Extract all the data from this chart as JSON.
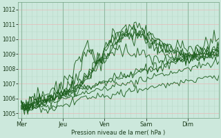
{
  "bg_color": "#cce8dc",
  "line_color": "#1a5c1a",
  "ylabel": "Pression niveau de la mer( hPa )",
  "ylim": [
    1004.7,
    1012.5
  ],
  "yticks": [
    1005,
    1006,
    1007,
    1008,
    1009,
    1010,
    1011,
    1012
  ],
  "xlabels": [
    "Mer",
    "Jeu",
    "Ven",
    "Sam",
    "Dim"
  ],
  "xtick_positions": [
    0,
    24,
    48,
    72,
    96
  ],
  "xlim": [
    -2,
    114
  ],
  "total_points": 120,
  "total_hours": 114,
  "grid_major_h_color": "#e8b8b8",
  "grid_minor_h_color": "#b8d8c8",
  "grid_minor_v_color": "#b8d8c8"
}
